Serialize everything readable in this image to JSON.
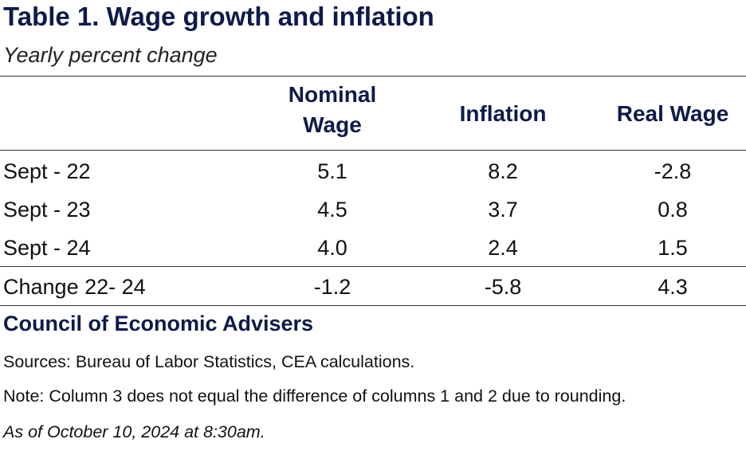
{
  "table": {
    "title": "Table 1. Wage growth and inflation",
    "subtitle": "Yearly percent change",
    "columns": [
      "Nominal Wage",
      "Inflation",
      "Real Wage"
    ],
    "column_lines": {
      "nominal_line1": "Nominal",
      "nominal_line2": "Wage"
    },
    "rows": [
      {
        "label": "Sept - 22",
        "values": [
          "5.1",
          "8.2",
          "-2.8"
        ]
      },
      {
        "label": "Sept - 23",
        "values": [
          "4.5",
          "3.7",
          "0.8"
        ]
      },
      {
        "label": "Sept - 24",
        "values": [
          "4.0",
          "2.4",
          "1.5"
        ]
      }
    ],
    "change_row": {
      "label": "Change 22- 24",
      "values": [
        "-1.2",
        "-5.8",
        "4.3"
      ]
    }
  },
  "footer": {
    "organization": "Council of Economic Advisers",
    "sources": "Sources: Bureau of Labor Statistics, CEA calculations.",
    "note": "Note: Column 3 does not equal the difference of columns 1 and 2 due to rounding.",
    "as_of": "As of October 10, 2024 at 8:30am."
  },
  "colors": {
    "heading": "#0d1a4a",
    "text": "#111111",
    "rule": "#333333"
  }
}
